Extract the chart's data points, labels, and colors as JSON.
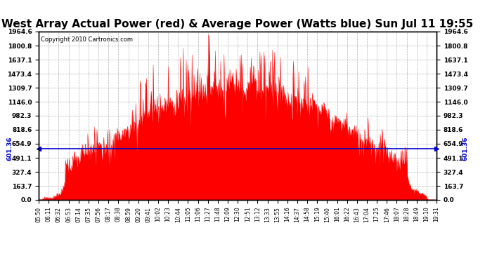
{
  "title": "West Array Actual Power (red) & Average Power (Watts blue) Sun Jul 11 19:55",
  "copyright": "Copyright 2010 Cartronics.com",
  "avg_power": 601.36,
  "y_ticks": [
    0.0,
    163.7,
    327.4,
    491.1,
    654.9,
    818.6,
    982.3,
    1146.0,
    1309.7,
    1473.4,
    1637.1,
    1800.8,
    1964.6
  ],
  "ylim": [
    0,
    1964.6
  ],
  "x_labels": [
    "05:50",
    "06:11",
    "06:32",
    "06:53",
    "07:14",
    "07:35",
    "07:56",
    "08:17",
    "08:38",
    "08:59",
    "09:20",
    "09:41",
    "10:02",
    "10:23",
    "10:44",
    "11:05",
    "11:06",
    "11:27",
    "11:48",
    "12:09",
    "12:30",
    "12:51",
    "13:12",
    "13:33",
    "13:55",
    "14:16",
    "14:37",
    "14:58",
    "15:19",
    "15:40",
    "16:01",
    "16:22",
    "16:43",
    "17:04",
    "17:25",
    "17:46",
    "18:07",
    "18:28",
    "18:49",
    "19:10",
    "19:31"
  ],
  "title_fontsize": 11,
  "copyright_fontsize": 6,
  "avg_label": "601.36",
  "background_color": "#ffffff",
  "grid_color": "#aaaaaa",
  "fill_color": "#ff0000",
  "line_color": "#0000cc"
}
